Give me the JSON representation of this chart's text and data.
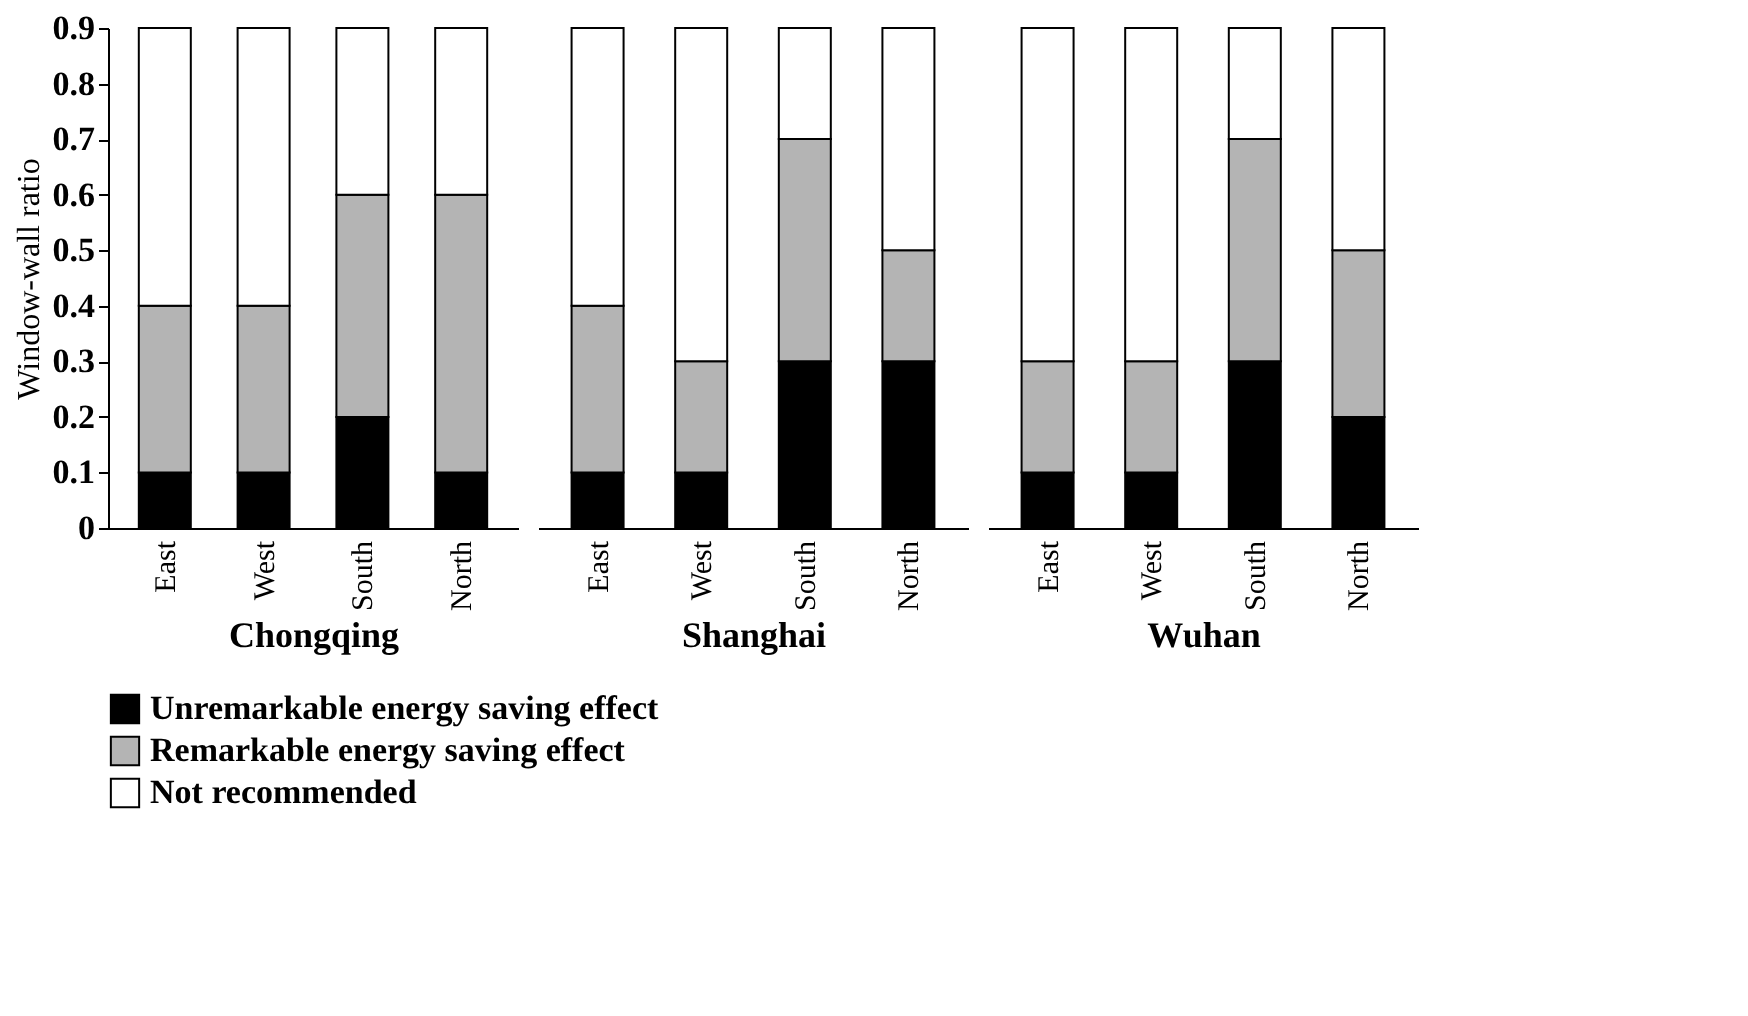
{
  "chart_data": [
    {
      "type": "bar",
      "stacked": true,
      "xlabel": "Chongqing",
      "ylabel": "Window-wall ratio",
      "categories": [
        "East",
        "West",
        "South",
        "North"
      ],
      "ylim": [
        0,
        0.9
      ],
      "yticks": [
        0,
        0.1,
        0.2,
        0.3,
        0.4,
        0.5,
        0.6,
        0.7,
        0.8,
        0.9
      ],
      "grid": false,
      "legend": "bottom",
      "series": [
        {
          "name": "Unremarkable energy saving effect",
          "color": "#000000",
          "values": [
            0.1,
            0.1,
            0.2,
            0.1
          ]
        },
        {
          "name": "Remarkable energy saving effect",
          "color": "#b4b4b4",
          "values": [
            0.3,
            0.3,
            0.4,
            0.5
          ]
        },
        {
          "name": "Not recommended",
          "color": "#ffffff",
          "values": [
            0.5,
            0.5,
            0.3,
            0.3
          ]
        }
      ]
    },
    {
      "type": "bar",
      "stacked": true,
      "xlabel": "Shanghai",
      "categories": [
        "East",
        "West",
        "South",
        "North"
      ],
      "ylim": [
        0,
        0.9
      ],
      "tick_labels": "x",
      "grid": false,
      "legend": "bottom",
      "series": [
        {
          "name": "Unremarkable energy saving effect",
          "color": "#000000",
          "values": [
            0.1,
            0.1,
            0.3,
            0.3
          ]
        },
        {
          "name": "Remarkable energy saving effect",
          "color": "#b4b4b4",
          "values": [
            0.3,
            0.2,
            0.4,
            0.2
          ]
        },
        {
          "name": "Not recommended",
          "color": "#ffffff",
          "values": [
            0.5,
            0.6,
            0.2,
            0.4
          ]
        }
      ]
    },
    {
      "type": "bar",
      "stacked": true,
      "xlabel": "Wuhan",
      "categories": [
        "East",
        "West",
        "South",
        "North"
      ],
      "ylim": [
        0,
        0.9
      ],
      "tick_labels": "x",
      "grid": false,
      "legend": "bottom",
      "series": [
        {
          "name": "Unremarkable energy saving effect",
          "color": "#000000",
          "values": [
            0.1,
            0.1,
            0.3,
            0.2
          ]
        },
        {
          "name": "Remarkable energy saving effect",
          "color": "#b4b4b4",
          "values": [
            0.2,
            0.2,
            0.4,
            0.3
          ]
        },
        {
          "name": "Not recommended",
          "color": "#ffffff",
          "values": [
            0.6,
            0.6,
            0.2,
            0.4
          ]
        }
      ]
    }
  ]
}
